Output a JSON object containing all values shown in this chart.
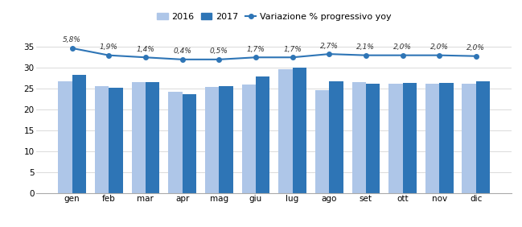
{
  "months": [
    "gen",
    "feb",
    "mar",
    "apr",
    "mag",
    "giu",
    "lug",
    "ago",
    "set",
    "ott",
    "nov",
    "dic"
  ],
  "values_2016": [
    26.7,
    25.7,
    26.5,
    24.3,
    25.4,
    26.0,
    29.7,
    24.6,
    26.5,
    26.1,
    26.1,
    26.2
  ],
  "values_2017": [
    28.3,
    25.2,
    26.6,
    23.6,
    25.6,
    28.0,
    30.0,
    26.8,
    26.1,
    26.4,
    26.3,
    26.8
  ],
  "line_values": [
    34.7,
    33.0,
    32.5,
    32.0,
    32.0,
    32.5,
    32.5,
    33.3,
    33.0,
    33.0,
    33.0,
    32.8
  ],
  "labels": [
    "5,8%",
    "1,9%",
    "1,4%",
    "0,4%",
    "0,5%",
    "1,7%",
    "1,7%",
    "2,7%",
    "2,1%",
    "2,0%",
    "2,0%",
    "2,0%"
  ],
  "color_2016": "#aec6e8",
  "color_2017": "#2e75b6",
  "line_color": "#2e75b6",
  "marker_face": "#2e75b6",
  "background_color": "#ffffff",
  "ylim": [
    0,
    37
  ],
  "yticks": [
    0,
    5,
    10,
    15,
    20,
    25,
    30,
    35
  ],
  "legend_2016": "2016",
  "legend_2017": "2017",
  "legend_line": "Variazione % progressivo yoy",
  "bar_width": 0.38
}
